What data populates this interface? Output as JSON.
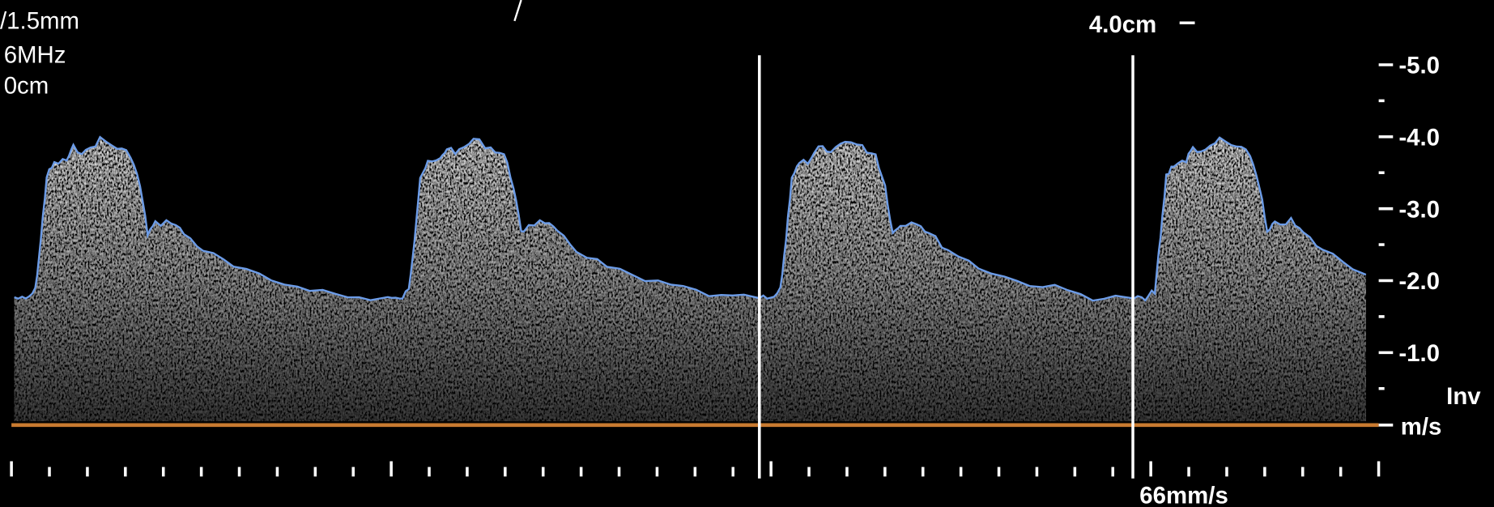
{
  "header": {
    "lines": [
      "/1.5mm",
      "6MHz",
      "0cm"
    ],
    "depth": "4.0cm"
  },
  "scale": {
    "labels": [
      "-5.0",
      "-4.0",
      "-3.0",
      "-2.0",
      "-1.0"
    ],
    "unit": "m/s",
    "invert": "Inv"
  },
  "sweep": "66mm/s"
}
